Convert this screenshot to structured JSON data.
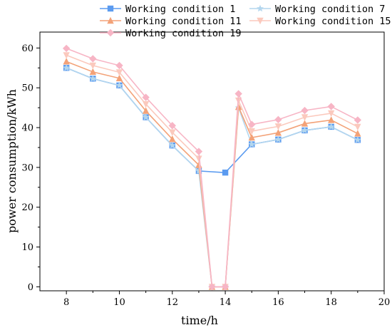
{
  "chart_data": {
    "type": "line",
    "xlabel": "time/h",
    "ylabel": "power consumption/kWh",
    "xlim": [
      7,
      20
    ],
    "ylim": [
      -1,
      64
    ],
    "xticks": [
      8,
      10,
      12,
      14,
      16,
      18,
      20
    ],
    "yticks": [
      0,
      10,
      20,
      30,
      40,
      50,
      60
    ],
    "xtick_labels": [
      "8",
      "10",
      "12",
      "14",
      "16",
      "18",
      "20"
    ],
    "ytick_labels": [
      "0",
      "10",
      "20",
      "30",
      "40",
      "50",
      "60"
    ],
    "legend_position": "top",
    "series": [
      {
        "name": "Working condition 1",
        "color": "#5b9bf0",
        "marker": "square",
        "points": [
          [
            8,
            55
          ],
          [
            9,
            52.3
          ],
          [
            10,
            50.6
          ],
          [
            11,
            42.6
          ],
          [
            12,
            35.5
          ],
          [
            13,
            29.1
          ],
          [
            14,
            28.7
          ],
          [
            15,
            35.8
          ],
          [
            16,
            37
          ],
          [
            17,
            39.3
          ],
          [
            18,
            40.2
          ],
          [
            19,
            36.9
          ]
        ]
      },
      {
        "name": "Working condition 7",
        "color": "#b3d6ee",
        "marker": "star",
        "points": [
          [
            8,
            55
          ],
          [
            9,
            52.3
          ],
          [
            10,
            50.6
          ],
          [
            11,
            42.6
          ],
          [
            12,
            35.5
          ],
          [
            13,
            29.1
          ],
          [
            13.5,
            0
          ],
          [
            14,
            0
          ],
          [
            14.5,
            45
          ],
          [
            15,
            35.8
          ],
          [
            16,
            37
          ],
          [
            17,
            39.3
          ],
          [
            18,
            40.2
          ],
          [
            19,
            36.9
          ]
        ]
      },
      {
        "name": "Working condition 11",
        "color": "#f3a278",
        "marker": "triangle-up",
        "points": [
          [
            8,
            56.6
          ],
          [
            9,
            54
          ],
          [
            10,
            52.4
          ],
          [
            11,
            44.2
          ],
          [
            12,
            37.1
          ],
          [
            13,
            30.6
          ],
          [
            13.5,
            0
          ],
          [
            14,
            0
          ],
          [
            14.5,
            45.2
          ],
          [
            15,
            37.5
          ],
          [
            16,
            38.7
          ],
          [
            17,
            41
          ],
          [
            18,
            41.9
          ],
          [
            19,
            38.5
          ]
        ]
      },
      {
        "name": "Working condition 15",
        "color": "#fbc9bd",
        "marker": "triangle-down",
        "points": [
          [
            8,
            58.2
          ],
          [
            9,
            55.6
          ],
          [
            10,
            53.9
          ],
          [
            11,
            45.9
          ],
          [
            12,
            38.8
          ],
          [
            13,
            32.2
          ],
          [
            13.5,
            0
          ],
          [
            14,
            0
          ],
          [
            14.5,
            46.8
          ],
          [
            15,
            39.1
          ],
          [
            16,
            40.3
          ],
          [
            17,
            42.6
          ],
          [
            18,
            43.6
          ],
          [
            19,
            40.2
          ]
        ]
      },
      {
        "name": "Working condition 19",
        "color": "#f7b5c5",
        "marker": "diamond",
        "points": [
          [
            8,
            59.9
          ],
          [
            9,
            57.3
          ],
          [
            10,
            55.6
          ],
          [
            11,
            47.6
          ],
          [
            12,
            40.5
          ],
          [
            13,
            34
          ],
          [
            13.5,
            0
          ],
          [
            14,
            0
          ],
          [
            14.5,
            48.5
          ],
          [
            15,
            40.8
          ],
          [
            16,
            42
          ],
          [
            17,
            44.3
          ],
          [
            18,
            45.3
          ],
          [
            19,
            41.9
          ]
        ]
      }
    ]
  }
}
